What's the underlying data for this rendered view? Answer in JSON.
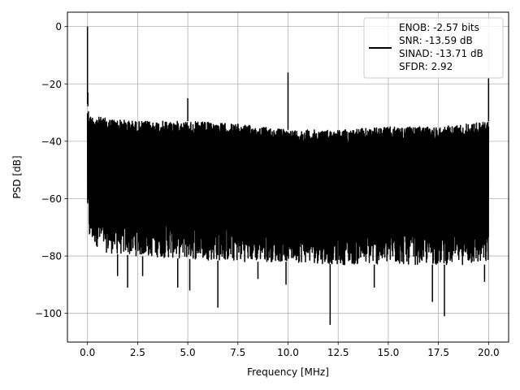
{
  "chart_data": {
    "type": "line",
    "title": "",
    "xlabel": "Frequency [MHz]",
    "ylabel": "PSD [dB]",
    "xlim": [
      -1.0,
      21.0
    ],
    "ylim": [
      -110,
      5
    ],
    "x_ticks": [
      0.0,
      2.5,
      5.0,
      7.5,
      10.0,
      12.5,
      15.0,
      17.5,
      20.0
    ],
    "x_tick_labels": [
      "0.0",
      "2.5",
      "5.0",
      "7.5",
      "10.0",
      "12.5",
      "15.0",
      "17.5",
      "20.0"
    ],
    "y_ticks": [
      0,
      -20,
      -40,
      -60,
      -80,
      -100
    ],
    "y_tick_labels": [
      "0",
      "−20",
      "−40",
      "−60",
      "−80",
      "−100"
    ],
    "grid": true,
    "legend_position": "upper-right",
    "line_color": "#000000",
    "series": [
      {
        "name": "",
        "legend_lines": [
          "ENOB: -2.57 bits",
          "SNR: -13.59 dB",
          "SINAD: -13.71 dB",
          "SFDR: 2.92"
        ],
        "x_range": [
          0.0,
          20.0
        ],
        "noise_envelope": {
          "x": [
            0.0,
            0.1,
            1.0,
            2.5,
            5.0,
            7.5,
            10.0,
            12.5,
            15.0,
            17.5,
            20.0
          ],
          "upper": [
            -27,
            -31,
            -32,
            -33,
            -33,
            -34,
            -36,
            -36,
            -35,
            -35,
            -33
          ],
          "lower": [
            -65,
            -75,
            -79,
            -80,
            -81,
            -82,
            -82,
            -83,
            -83,
            -83,
            -83
          ]
        },
        "spurs": [
          {
            "x": 0.0,
            "y": 0
          },
          {
            "x": 0.02,
            "y": -23
          },
          {
            "x": 5.0,
            "y": -25
          },
          {
            "x": 10.0,
            "y": -16
          },
          {
            "x": 20.0,
            "y": -18
          }
        ],
        "dips": [
          {
            "x": 1.5,
            "y": -87
          },
          {
            "x": 2.0,
            "y": -91
          },
          {
            "x": 2.75,
            "y": -87
          },
          {
            "x": 4.5,
            "y": -91
          },
          {
            "x": 5.1,
            "y": -92
          },
          {
            "x": 6.5,
            "y": -98
          },
          {
            "x": 8.5,
            "y": -88
          },
          {
            "x": 9.9,
            "y": -90
          },
          {
            "x": 12.1,
            "y": -104
          },
          {
            "x": 14.3,
            "y": -91
          },
          {
            "x": 17.2,
            "y": -96
          },
          {
            "x": 17.8,
            "y": -101
          },
          {
            "x": 19.8,
            "y": -89
          }
        ]
      }
    ]
  }
}
